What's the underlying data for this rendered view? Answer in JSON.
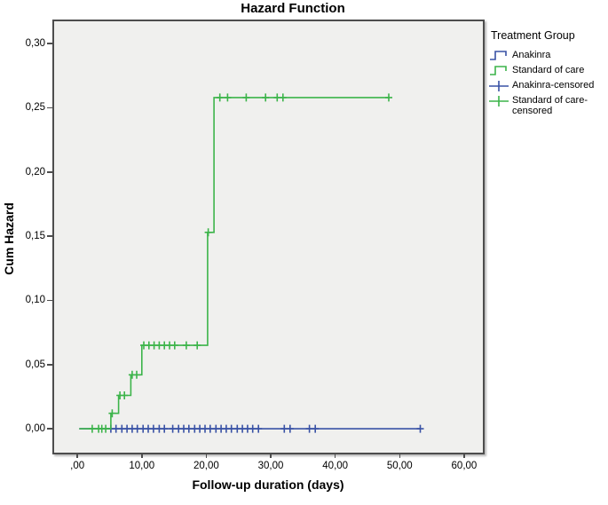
{
  "figure": {
    "title": "Hazard Function"
  },
  "axes": {
    "x_label": "Follow-up duration (days)",
    "y_label": "Cum Hazard"
  },
  "legend": {
    "title": "Treatment Group",
    "items": [
      {
        "label": "Anakinra",
        "glyph": "step",
        "color": "#3952a5"
      },
      {
        "label": "Standard of care",
        "glyph": "step",
        "color": "#3cb44a"
      },
      {
        "label": "Anakinra-censored",
        "glyph": "plus",
        "color": "#3952a5"
      },
      {
        "label": "Standard of care-censored",
        "glyph": "plus",
        "color": "#3cb44a"
      }
    ]
  },
  "colors": {
    "anakinra": "#3952a5",
    "standard_of_care": "#3cb44a",
    "plot_background": "#f0f0ee",
    "frame": "#4d4d4d"
  },
  "chart_data": {
    "type": "line",
    "subtype": "cumulative-hazard-step-function",
    "title": "Hazard Function",
    "xlabel": "Follow-up duration (days)",
    "ylabel": "Cum Hazard",
    "legend_title": "Treatment Group",
    "legend_position": "right",
    "grid": false,
    "xlim": [
      -3.6,
      62.9
    ],
    "ylim": [
      -0.0186,
      0.3174
    ],
    "x_ticks": {
      "values": [
        0,
        10,
        20,
        30,
        40,
        50,
        60
      ],
      "labels": [
        ",00",
        "10,00",
        "20,00",
        "30,00",
        "40,00",
        "50,00",
        "60,00"
      ]
    },
    "y_ticks": {
      "values": [
        0.0,
        0.05,
        0.1,
        0.15,
        0.2,
        0.25,
        0.3
      ],
      "labels": [
        "0,00",
        "0,05",
        "0,10",
        "0,15",
        "0,20",
        "0,25",
        "0,30"
      ]
    },
    "series": [
      {
        "name": "Anakinra",
        "color": "#3952a5",
        "steps": [
          [
            0.3,
            0.0
          ],
          [
            53.2,
            0.0
          ]
        ],
        "censored": [
          [
            5.2,
            0.0
          ],
          [
            6.0,
            0.0
          ],
          [
            6.9,
            0.0
          ],
          [
            7.7,
            0.0
          ],
          [
            8.5,
            0.0
          ],
          [
            9.3,
            0.0
          ],
          [
            10.2,
            0.0
          ],
          [
            11.0,
            0.0
          ],
          [
            11.8,
            0.0
          ],
          [
            12.7,
            0.0
          ],
          [
            13.5,
            0.0
          ],
          [
            14.8,
            0.0
          ],
          [
            15.7,
            0.0
          ],
          [
            16.5,
            0.0
          ],
          [
            17.3,
            0.0
          ],
          [
            18.2,
            0.0
          ],
          [
            19.0,
            0.0
          ],
          [
            19.8,
            0.0
          ],
          [
            20.6,
            0.0
          ],
          [
            21.5,
            0.0
          ],
          [
            22.3,
            0.0
          ],
          [
            23.1,
            0.0
          ],
          [
            23.9,
            0.0
          ],
          [
            24.8,
            0.0
          ],
          [
            25.6,
            0.0
          ],
          [
            26.4,
            0.0
          ],
          [
            27.2,
            0.0
          ],
          [
            28.1,
            0.0
          ],
          [
            32.1,
            0.0
          ],
          [
            33.0,
            0.0
          ],
          [
            36.0,
            0.0
          ],
          [
            36.9,
            0.0
          ],
          [
            53.2,
            0.0
          ]
        ]
      },
      {
        "name": "Standard of care",
        "color": "#3cb44a",
        "steps": [
          [
            0.3,
            0.0
          ],
          [
            5.2,
            0.0
          ],
          [
            5.2,
            0.012
          ],
          [
            6.4,
            0.012
          ],
          [
            6.4,
            0.026
          ],
          [
            8.3,
            0.026
          ],
          [
            8.3,
            0.042
          ],
          [
            10.0,
            0.042
          ],
          [
            10.0,
            0.065
          ],
          [
            20.2,
            0.065
          ],
          [
            20.2,
            0.153
          ],
          [
            21.2,
            0.153
          ],
          [
            21.2,
            0.258
          ],
          [
            48.3,
            0.258
          ]
        ],
        "censored": [
          [
            2.3,
            0.0
          ],
          [
            3.3,
            0.0
          ],
          [
            3.8,
            0.0
          ],
          [
            4.4,
            0.0
          ],
          [
            5.4,
            0.012
          ],
          [
            6.6,
            0.026
          ],
          [
            7.3,
            0.026
          ],
          [
            8.5,
            0.042
          ],
          [
            9.2,
            0.042
          ],
          [
            10.3,
            0.065
          ],
          [
            11.1,
            0.065
          ],
          [
            11.9,
            0.065
          ],
          [
            12.7,
            0.065
          ],
          [
            13.5,
            0.065
          ],
          [
            14.3,
            0.065
          ],
          [
            15.1,
            0.065
          ],
          [
            16.9,
            0.065
          ],
          [
            18.6,
            0.065
          ],
          [
            20.3,
            0.153
          ],
          [
            22.1,
            0.258
          ],
          [
            23.3,
            0.258
          ],
          [
            26.2,
            0.258
          ],
          [
            29.2,
            0.258
          ],
          [
            31.0,
            0.258
          ],
          [
            31.9,
            0.258
          ],
          [
            48.3,
            0.258
          ]
        ]
      }
    ]
  }
}
